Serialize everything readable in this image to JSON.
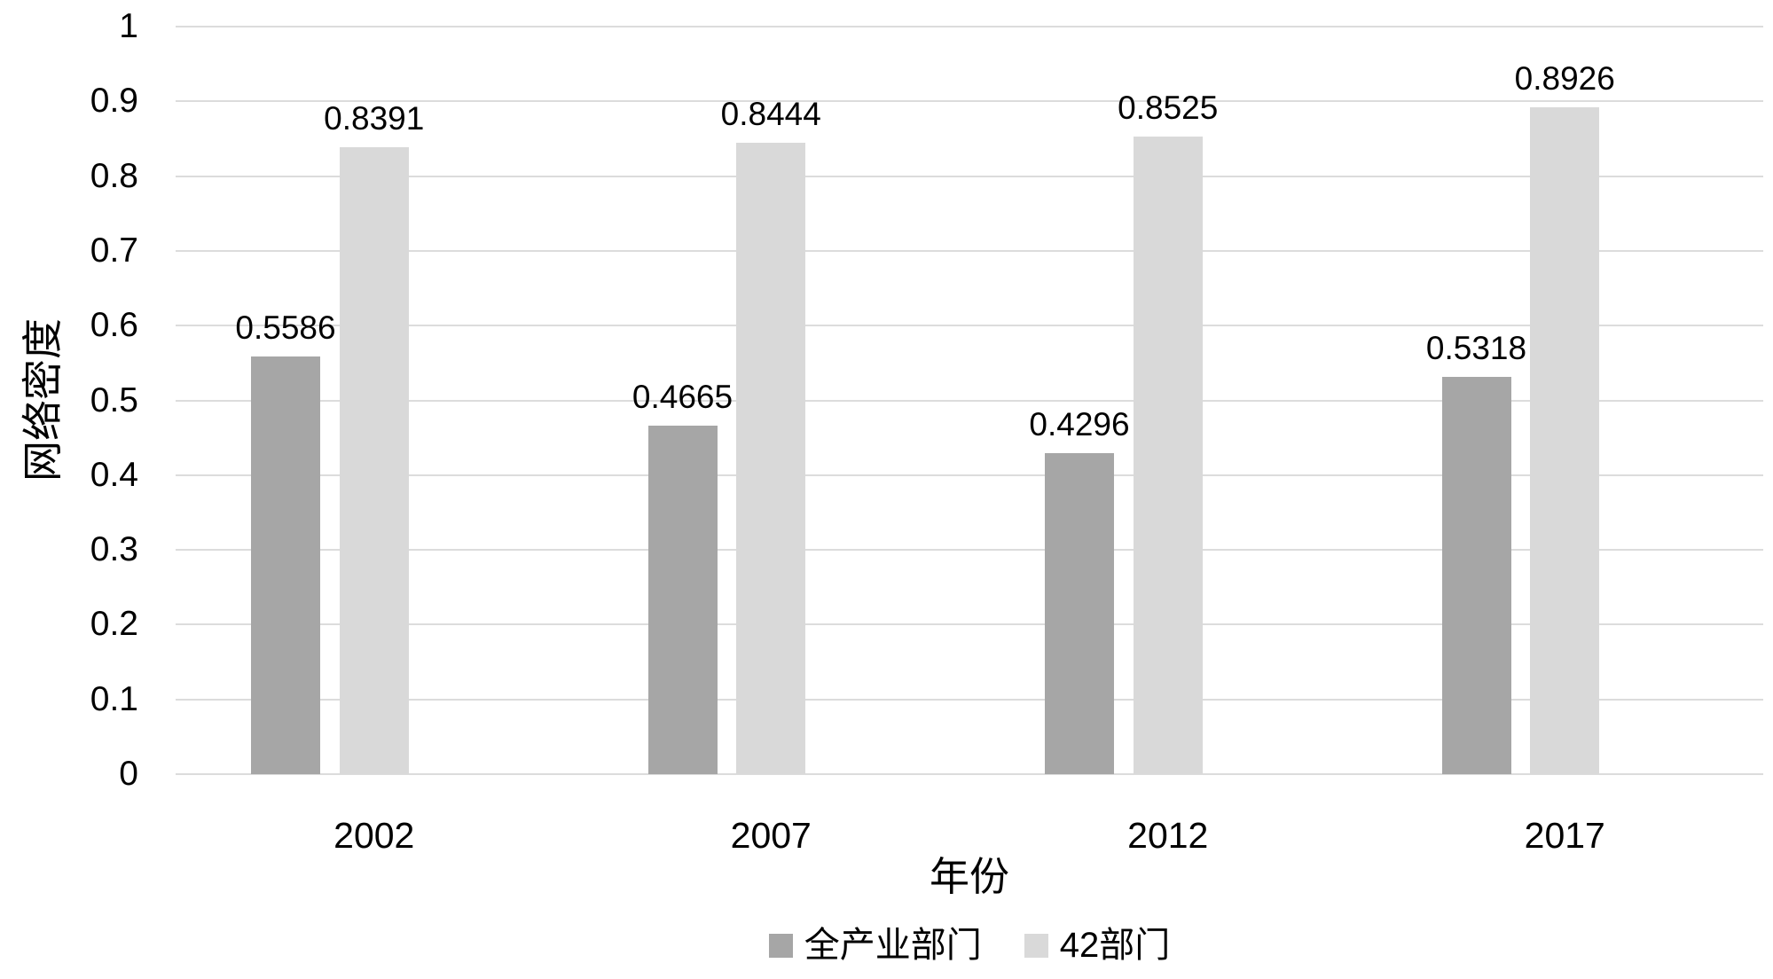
{
  "chart_data": {
    "type": "bar",
    "title": "",
    "categories": [
      "2002",
      "2007",
      "2012",
      "2017"
    ],
    "series": [
      {
        "name": "全产业部门",
        "color": "#a6a6a6",
        "values": [
          0.5586,
          0.4665,
          0.4296,
          0.5318
        ],
        "labels": [
          "0.5586",
          "0.4665",
          "0.4296",
          "0.5318"
        ]
      },
      {
        "name": "42部门",
        "color": "#d9d9d9",
        "values": [
          0.8391,
          0.8444,
          0.8525,
          0.8926
        ],
        "labels": [
          "0.8391",
          "0.8444",
          "0.8525",
          "0.8926"
        ]
      }
    ],
    "xlabel": "年份",
    "ylabel": "网络密度",
    "ylim": [
      0,
      1
    ],
    "y_ticks": [
      {
        "value": 0,
        "label": "0"
      },
      {
        "value": 0.1,
        "label": "0.1"
      },
      {
        "value": 0.2,
        "label": "0.2"
      },
      {
        "value": 0.3,
        "label": "0.3"
      },
      {
        "value": 0.4,
        "label": "0.4"
      },
      {
        "value": 0.5,
        "label": "0.5"
      },
      {
        "value": 0.6,
        "label": "0.6"
      },
      {
        "value": 0.7,
        "label": "0.7"
      },
      {
        "value": 0.8,
        "label": "0.8"
      },
      {
        "value": 0.9,
        "label": "0.9"
      },
      {
        "value": 1,
        "label": "1"
      }
    ],
    "grid": "horizontal",
    "legend_position": "bottom",
    "data_labels": true
  },
  "colors": {
    "background": "#ffffff",
    "text": "#000000",
    "gridline": "#dcdcdc",
    "series_dark": "#a6a6a6",
    "series_light": "#d9d9d9"
  }
}
